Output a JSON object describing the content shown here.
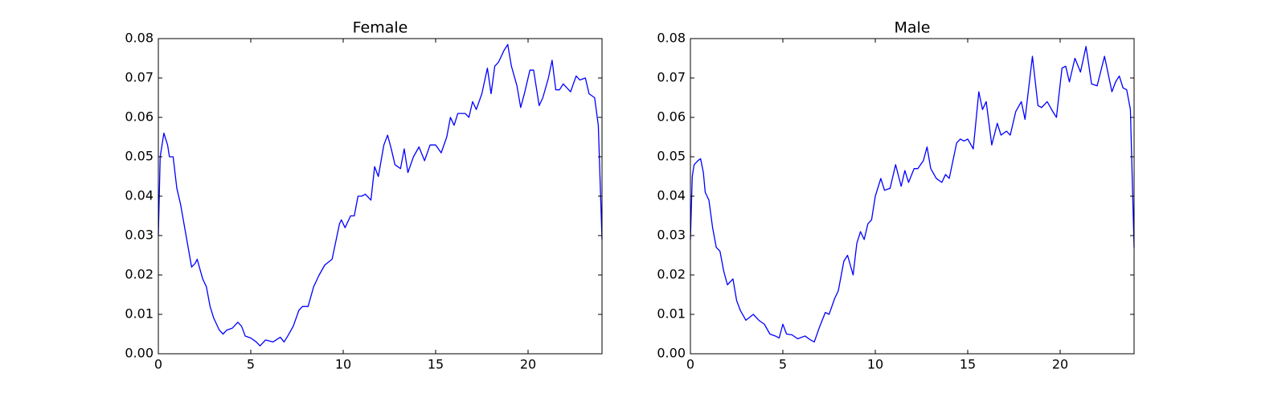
{
  "chart_data": [
    {
      "type": "line",
      "title": "Female",
      "color": "#0000ff",
      "x": [
        0,
        0.1,
        0.3,
        0.5,
        0.6,
        0.8,
        1.0,
        1.2,
        1.5,
        1.8,
        2.0,
        2.1,
        2.4,
        2.6,
        2.8,
        3.0,
        3.3,
        3.5,
        3.7,
        4.0,
        4.3,
        4.5,
        4.7,
        5.0,
        5.3,
        5.5,
        5.8,
        6.2,
        6.6,
        6.8,
        7.0,
        7.3,
        7.6,
        7.8,
        8.1,
        8.4,
        8.7,
        9.0,
        9.4,
        9.8,
        9.9,
        10.1,
        10.4,
        10.6,
        10.8,
        11.0,
        11.2,
        11.5,
        11.7,
        11.9,
        12.2,
        12.4,
        12.6,
        12.8,
        13.1,
        13.3,
        13.5,
        13.8,
        14.1,
        14.4,
        14.7,
        15.0,
        15.3,
        15.6,
        15.8,
        16.0,
        16.2,
        16.6,
        16.8,
        17.0,
        17.2,
        17.5,
        17.8,
        18.0,
        18.2,
        18.4,
        18.7,
        18.9,
        19.1,
        19.4,
        19.6,
        19.8,
        20.1,
        20.3,
        20.6,
        20.8,
        21.1,
        21.3,
        21.5,
        21.7,
        21.9,
        22.3,
        22.6,
        22.8,
        23.1,
        23.3,
        23.6,
        23.8,
        24.0
      ],
      "values": [
        0.03,
        0.05,
        0.056,
        0.053,
        0.05,
        0.05,
        0.042,
        0.038,
        0.03,
        0.022,
        0.023,
        0.024,
        0.019,
        0.017,
        0.012,
        0.009,
        0.006,
        0.005,
        0.006,
        0.0065,
        0.008,
        0.007,
        0.0045,
        0.004,
        0.003,
        0.002,
        0.0035,
        0.003,
        0.0042,
        0.003,
        0.0045,
        0.007,
        0.011,
        0.012,
        0.012,
        0.017,
        0.02,
        0.0225,
        0.024,
        0.033,
        0.034,
        0.032,
        0.035,
        0.035,
        0.04,
        0.04,
        0.0405,
        0.039,
        0.0475,
        0.045,
        0.053,
        0.0555,
        0.052,
        0.048,
        0.047,
        0.052,
        0.046,
        0.05,
        0.0525,
        0.049,
        0.053,
        0.053,
        0.051,
        0.055,
        0.06,
        0.058,
        0.061,
        0.061,
        0.06,
        0.064,
        0.062,
        0.066,
        0.0725,
        0.066,
        0.073,
        0.074,
        0.077,
        0.0785,
        0.073,
        0.068,
        0.0625,
        0.066,
        0.072,
        0.072,
        0.063,
        0.065,
        0.07,
        0.0745,
        0.067,
        0.067,
        0.0685,
        0.0665,
        0.0705,
        0.0695,
        0.07,
        0.066,
        0.065,
        0.058,
        0.029
      ],
      "xlim": [
        0,
        24
      ],
      "xticks": [
        0,
        5,
        10,
        15,
        20
      ],
      "ylim": [
        0,
        0.08
      ],
      "yticks": [
        {
          "value": 0,
          "label": "0.00"
        },
        0.01,
        0.02,
        0.03,
        0.04,
        0.05,
        0.06,
        0.07,
        0.08
      ]
    },
    {
      "type": "line",
      "title": "Male",
      "color": "#0000ff",
      "x": [
        0,
        0.1,
        0.2,
        0.4,
        0.55,
        0.7,
        0.8,
        1.0,
        1.2,
        1.4,
        1.6,
        1.8,
        2.0,
        2.3,
        2.5,
        2.7,
        3.0,
        3.4,
        3.7,
        4.0,
        4.3,
        4.6,
        4.8,
        5.0,
        5.2,
        5.5,
        5.8,
        6.2,
        6.5,
        6.7,
        7.0,
        7.3,
        7.5,
        7.8,
        8.0,
        8.3,
        8.5,
        8.8,
        9.0,
        9.2,
        9.4,
        9.6,
        9.8,
        10.0,
        10.3,
        10.5,
        10.8,
        11.1,
        11.4,
        11.6,
        11.8,
        12.1,
        12.3,
        12.6,
        12.8,
        13.0,
        13.3,
        13.6,
        13.8,
        14.0,
        14.4,
        14.6,
        14.8,
        15.0,
        15.3,
        15.6,
        15.8,
        16.0,
        16.3,
        16.6,
        16.8,
        17.1,
        17.3,
        17.6,
        17.9,
        18.1,
        18.5,
        18.8,
        19.0,
        19.3,
        19.6,
        19.8,
        20.1,
        20.3,
        20.5,
        20.8,
        21.1,
        21.4,
        21.7,
        22.0,
        22.4,
        22.8,
        23.0,
        23.2,
        23.4,
        23.6,
        23.8,
        24.0
      ],
      "values": [
        0.029,
        0.045,
        0.048,
        0.049,
        0.0495,
        0.046,
        0.041,
        0.039,
        0.032,
        0.027,
        0.026,
        0.021,
        0.0175,
        0.019,
        0.0135,
        0.011,
        0.0085,
        0.01,
        0.0085,
        0.0075,
        0.005,
        0.0045,
        0.004,
        0.0075,
        0.005,
        0.0048,
        0.0038,
        0.0045,
        0.0035,
        0.003,
        0.007,
        0.0105,
        0.01,
        0.014,
        0.016,
        0.0235,
        0.025,
        0.02,
        0.028,
        0.031,
        0.029,
        0.033,
        0.034,
        0.04,
        0.0445,
        0.0415,
        0.042,
        0.048,
        0.0425,
        0.0465,
        0.0435,
        0.047,
        0.047,
        0.049,
        0.0525,
        0.047,
        0.0445,
        0.0435,
        0.0455,
        0.0445,
        0.0535,
        0.0545,
        0.054,
        0.0545,
        0.052,
        0.0665,
        0.062,
        0.064,
        0.053,
        0.0585,
        0.0555,
        0.0565,
        0.0555,
        0.0615,
        0.064,
        0.0595,
        0.0755,
        0.063,
        0.0625,
        0.064,
        0.0615,
        0.06,
        0.0725,
        0.073,
        0.069,
        0.075,
        0.0715,
        0.078,
        0.0685,
        0.068,
        0.0755,
        0.0665,
        0.069,
        0.0705,
        0.0675,
        0.067,
        0.062,
        0.027
      ],
      "xlim": [
        0,
        24
      ],
      "xticks": [
        0,
        5,
        10,
        15,
        20
      ],
      "ylim": [
        0,
        0.08
      ],
      "yticks": [
        {
          "value": 0,
          "label": "0.00"
        },
        0.01,
        0.02,
        0.03,
        0.04,
        0.05,
        0.06,
        0.07,
        0.08
      ]
    }
  ]
}
